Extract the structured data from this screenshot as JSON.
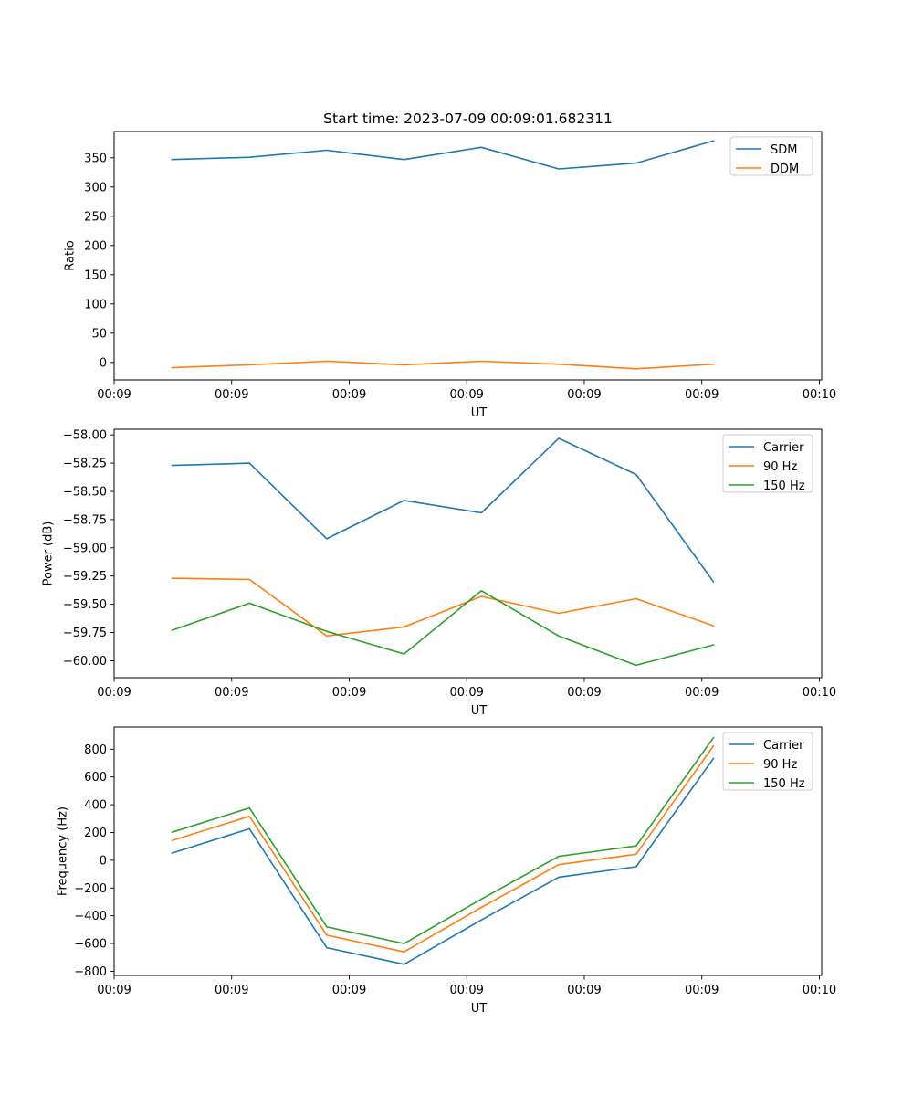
{
  "chart_data": [
    {
      "type": "line",
      "title": "Start time: 2023-07-09 00:09:01.682311",
      "xlabel": "UT",
      "ylabel": "Ratio",
      "x": [
        0,
        1,
        2,
        3,
        4,
        5,
        6,
        7
      ],
      "xlim": [
        -0.75,
        8.4
      ],
      "xticks": [
        -0.75,
        0.77,
        2.29,
        3.81,
        5.33,
        6.85,
        8.37
      ],
      "xtick_labels": [
        "00:09",
        "00:09",
        "00:09",
        "00:09",
        "00:09",
        "00:09",
        "00:10"
      ],
      "ylim": [
        -30,
        395
      ],
      "yticks": [
        0,
        50,
        100,
        150,
        200,
        250,
        300,
        350
      ],
      "ytick_labels": [
        "0",
        "50",
        "100",
        "150",
        "200",
        "250",
        "300",
        "350"
      ],
      "grid": false,
      "legend": "top-right",
      "series": [
        {
          "name": "SDM",
          "color": "#1f77b4",
          "values": [
            347,
            351,
            363,
            347,
            368,
            331,
            341,
            379
          ]
        },
        {
          "name": "DDM",
          "color": "#ff7f0e",
          "values": [
            -9,
            -4,
            2,
            -4,
            2,
            -3,
            -11,
            -3
          ]
        }
      ]
    },
    {
      "type": "line",
      "title": "",
      "xlabel": "UT",
      "ylabel": "Power (dB)",
      "x": [
        0,
        1,
        2,
        3,
        4,
        5,
        6,
        7
      ],
      "xlim": [
        -0.75,
        8.4
      ],
      "xticks": [
        -0.75,
        0.77,
        2.29,
        3.81,
        5.33,
        6.85,
        8.37
      ],
      "xtick_labels": [
        "00:09",
        "00:09",
        "00:09",
        "00:09",
        "00:09",
        "00:09",
        "00:10"
      ],
      "ylim": [
        -60.15,
        -57.95
      ],
      "yticks": [
        -60.0,
        -59.75,
        -59.5,
        -59.25,
        -59.0,
        -58.75,
        -58.5,
        -58.25,
        -58.0
      ],
      "ytick_labels": [
        "−60.00",
        "−59.75",
        "−59.50",
        "−59.25",
        "−59.00",
        "−58.75",
        "−58.50",
        "−58.25",
        "−58.00"
      ],
      "grid": false,
      "legend": "top-right",
      "series": [
        {
          "name": "Carrier",
          "color": "#1f77b4",
          "values": [
            -58.27,
            -58.25,
            -58.92,
            -58.58,
            -58.69,
            -58.03,
            -58.35,
            -59.3
          ]
        },
        {
          "name": "90 Hz",
          "color": "#ff7f0e",
          "values": [
            -59.27,
            -59.28,
            -59.78,
            -59.7,
            -59.43,
            -59.58,
            -59.45,
            -59.69
          ]
        },
        {
          "name": "150 Hz",
          "color": "#2ca02c",
          "values": [
            -59.73,
            -59.49,
            -59.74,
            -59.94,
            -59.38,
            -59.78,
            -60.04,
            -59.86
          ]
        }
      ]
    },
    {
      "type": "line",
      "title": "",
      "xlabel": "UT",
      "ylabel": "Frequency (Hz)",
      "x": [
        0,
        1,
        2,
        3,
        4,
        5,
        6,
        7
      ],
      "xlim": [
        -0.75,
        8.4
      ],
      "xticks": [
        -0.75,
        0.77,
        2.29,
        3.81,
        5.33,
        6.85,
        8.37
      ],
      "xtick_labels": [
        "00:09",
        "00:09",
        "00:09",
        "00:09",
        "00:09",
        "00:09",
        "00:10"
      ],
      "ylim": [
        -830,
        960
      ],
      "yticks": [
        -800,
        -600,
        -400,
        -200,
        0,
        200,
        400,
        600,
        800
      ],
      "ytick_labels": [
        "−800",
        "−600",
        "−400",
        "−200",
        "0",
        "200",
        "400",
        "600",
        "800"
      ],
      "grid": false,
      "legend": "top-right",
      "series": [
        {
          "name": "Carrier",
          "color": "#1f77b4",
          "values": [
            52,
            227,
            -630,
            -750,
            -430,
            -122,
            -47,
            733
          ]
        },
        {
          "name": "90 Hz",
          "color": "#ff7f0e",
          "values": [
            142,
            317,
            -540,
            -660,
            -340,
            -32,
            43,
            823
          ]
        },
        {
          "name": "150 Hz",
          "color": "#2ca02c",
          "values": [
            202,
            377,
            -480,
            -600,
            -280,
            28,
            103,
            883
          ]
        }
      ]
    }
  ]
}
